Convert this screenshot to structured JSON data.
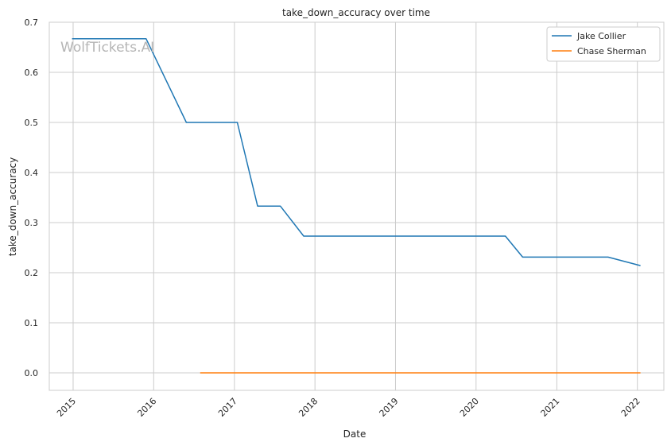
{
  "watermark": "WolfTickets.AI",
  "chart_data": {
    "type": "line",
    "title": "take_down_accuracy over time",
    "xlabel": "Date",
    "ylabel": "take_down_accuracy",
    "x_ticks": [
      "2015",
      "2016",
      "2017",
      "2018",
      "2019",
      "2020",
      "2021",
      "2022"
    ],
    "y_ticks": [
      "0.0",
      "0.1",
      "0.2",
      "0.3",
      "0.4",
      "0.5",
      "0.6",
      "0.7"
    ],
    "xlim": [
      "2014-09-15",
      "2022-05-01"
    ],
    "ylim": [
      -0.035,
      0.7
    ],
    "grid": true,
    "legend_position": "top-right",
    "series": [
      {
        "name": "Jake Collier",
        "color": "#1f77b4",
        "points": [
          {
            "x": "2014-12-27",
            "y": 0.667
          },
          {
            "x": "2015-11-28",
            "y": 0.667
          },
          {
            "x": "2016-05-28",
            "y": 0.5
          },
          {
            "x": "2017-01-14",
            "y": 0.5
          },
          {
            "x": "2017-04-16",
            "y": 0.333
          },
          {
            "x": "2017-07-28",
            "y": 0.333
          },
          {
            "x": "2017-11-11",
            "y": 0.273
          },
          {
            "x": "2020-05-13",
            "y": 0.273
          },
          {
            "x": "2020-07-30",
            "y": 0.231
          },
          {
            "x": "2021-08-21",
            "y": 0.231
          },
          {
            "x": "2022-01-15",
            "y": 0.214
          }
        ]
      },
      {
        "name": "Chase Sherman",
        "color": "#ff7f0e",
        "points": [
          {
            "x": "2016-07-30",
            "y": 0.0
          },
          {
            "x": "2022-01-15",
            "y": 0.0
          }
        ]
      }
    ]
  }
}
